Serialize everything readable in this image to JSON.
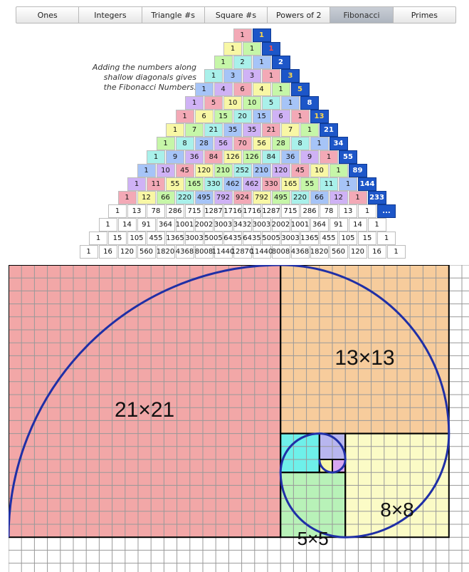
{
  "tabs": [
    "Ones",
    "Integers",
    "Triangle #s",
    "Square #s",
    "Powers of 2",
    "Fibonacci",
    "Primes"
  ],
  "active_tab": "Fibonacci",
  "caption_lines": [
    "Adding the numbers along",
    "shallow diagonals gives",
    "the Fibonacci Numbers."
  ],
  "triangle_rows": [
    [
      "1"
    ],
    [
      "1",
      "1"
    ],
    [
      "1",
      "2",
      "1"
    ],
    [
      "1",
      "3",
      "3",
      "1"
    ],
    [
      "1",
      "4",
      "6",
      "4",
      "1"
    ],
    [
      "1",
      "5",
      "10",
      "10",
      "5",
      "1"
    ],
    [
      "1",
      "6",
      "15",
      "20",
      "15",
      "6",
      "1"
    ],
    [
      "1",
      "7",
      "21",
      "35",
      "35",
      "21",
      "7",
      "1"
    ],
    [
      "1",
      "8",
      "28",
      "56",
      "70",
      "56",
      "28",
      "8",
      "1"
    ],
    [
      "1",
      "9",
      "36",
      "84",
      "126",
      "126",
      "84",
      "36",
      "9",
      "1"
    ],
    [
      "1",
      "10",
      "45",
      "120",
      "210",
      "252",
      "210",
      "120",
      "45",
      "10",
      "1"
    ],
    [
      "1",
      "11",
      "55",
      "165",
      "330",
      "462",
      "462",
      "330",
      "165",
      "55",
      "11",
      "1"
    ],
    [
      "1",
      "12",
      "66",
      "220",
      "495",
      "792",
      "924",
      "792",
      "495",
      "220",
      "66",
      "12",
      "1"
    ],
    [
      "1",
      "13",
      "78",
      "286",
      "715",
      "1287",
      "1716",
      "1716",
      "1287",
      "715",
      "286",
      "78",
      "13",
      "1"
    ],
    [
      "1",
      "14",
      "91",
      "364",
      "1001",
      "2002",
      "3003",
      "3432",
      "3003",
      "2002",
      "1001",
      "364",
      "91",
      "14",
      "1"
    ],
    [
      "1",
      "15",
      "105",
      "455",
      "1365",
      "3003",
      "5005",
      "6435",
      "6435",
      "5005",
      "3003",
      "1365",
      "455",
      "105",
      "15",
      "1"
    ],
    [
      "1",
      "16",
      "120",
      "560",
      "1820",
      "4368",
      "8008",
      "11440",
      "12870",
      "11440",
      "8008",
      "4368",
      "1820",
      "560",
      "120",
      "16",
      "1"
    ]
  ],
  "fibonacci_sums": [
    "1",
    "1",
    "2",
    "3",
    "5",
    "8",
    "13",
    "21",
    "34",
    "55",
    "89",
    "144",
    "233",
    "..."
  ],
  "spiral_labels": [
    "21×21",
    "13×13",
    "8×8",
    "5×5"
  ],
  "colors": {
    "sq21": "#f2a7a7",
    "sq13": "#f7cc9c",
    "sq8": "#fbfbc6",
    "sq5": "#b8f2b8",
    "sq3": "#6ef0ea",
    "sq2": "#b8b6ef",
    "sq1a": "#f6f5a9",
    "sq1b": "#d7a6f0",
    "spiral": "#1f2fa6",
    "grid": "#999999",
    "sum_bg": "#1d56c8"
  }
}
